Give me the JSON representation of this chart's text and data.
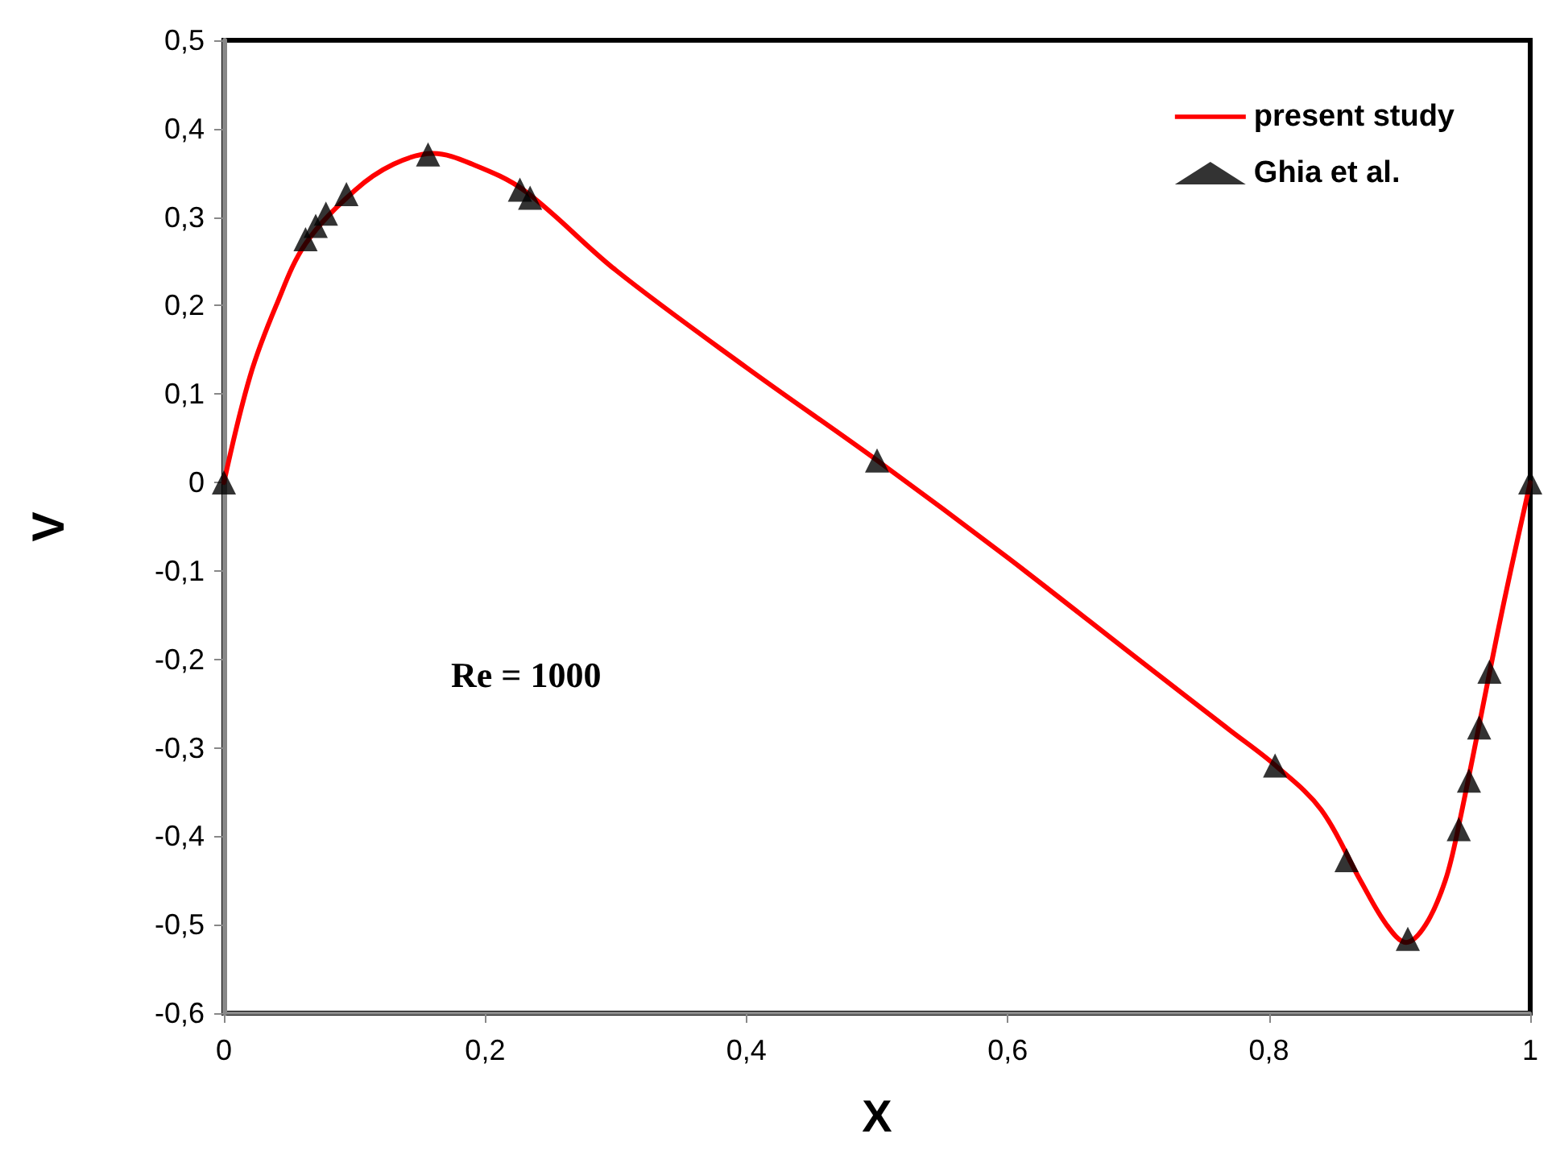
{
  "chart_data": {
    "type": "line",
    "xlabel": "X",
    "ylabel": "V",
    "annotations": [
      "Re = 1000"
    ],
    "xlim": [
      0,
      1
    ],
    "xticks": [
      0,
      {
        "value": 0.2,
        "label": "0,2"
      },
      {
        "value": 0.4,
        "label": "0,4"
      },
      {
        "value": 0.6,
        "label": "0,6"
      },
      {
        "value": 0.8,
        "label": "0,8"
      },
      1
    ],
    "ylim": [
      -0.6,
      0.5
    ],
    "yticks": [
      {
        "value": -0.6,
        "label": "-0,6"
      },
      {
        "value": -0.5,
        "label": "-0,5"
      },
      {
        "value": -0.4,
        "label": "-0,4"
      },
      {
        "value": -0.3,
        "label": "-0,3"
      },
      {
        "value": -0.2,
        "label": "-0,2"
      },
      {
        "value": -0.1,
        "label": "-0,1"
      },
      0,
      {
        "value": 0.1,
        "label": "0,1"
      },
      {
        "value": 0.2,
        "label": "0,2"
      },
      {
        "value": 0.3,
        "label": "0,3"
      },
      {
        "value": 0.4,
        "label": "0,4"
      },
      {
        "value": 0.5,
        "label": "0,5"
      }
    ],
    "grid": false,
    "legend": "top right",
    "series": [
      {
        "name": "present study",
        "color": "#ff0000",
        "marker": "none",
        "line_style": "solid",
        "x": [
          0,
          0.02,
          0.04,
          0.0625,
          0.1,
          0.13,
          0.16,
          0.19,
          0.23,
          0.3,
          0.4,
          0.5,
          0.6,
          0.7,
          0.77,
          0.805,
          0.84,
          0.87,
          0.89,
          0.905,
          0.92,
          0.935,
          0.945,
          0.975,
          0.985,
          1
        ],
        "values": [
          0,
          0.12,
          0.2,
          0.27,
          0.33,
          0.36,
          0.372,
          0.36,
          0.33,
          0.24,
          0.13,
          0.025,
          -0.085,
          -0.2,
          -0.28,
          -0.32,
          -0.37,
          -0.45,
          -0.5,
          -0.52,
          -0.5,
          -0.45,
          -0.39,
          -0.17,
          -0.1,
          0
        ]
      },
      {
        "name": "Ghia et al.",
        "type": "scatter",
        "color": "#000000",
        "marker": "triangle",
        "x": [
          0,
          0.0625,
          0.0703,
          0.0781,
          0.0938,
          0.1563,
          0.2266,
          0.2344,
          0.5,
          0.8047,
          0.8594,
          0.9063,
          0.9453,
          0.9531,
          0.9609,
          0.9688,
          1
        ],
        "values": [
          0,
          0.275,
          0.29,
          0.304,
          0.326,
          0.371,
          0.331,
          0.322,
          0.025,
          -0.32,
          -0.427,
          -0.516,
          -0.392,
          -0.337,
          -0.277,
          -0.214,
          0
        ]
      }
    ]
  }
}
